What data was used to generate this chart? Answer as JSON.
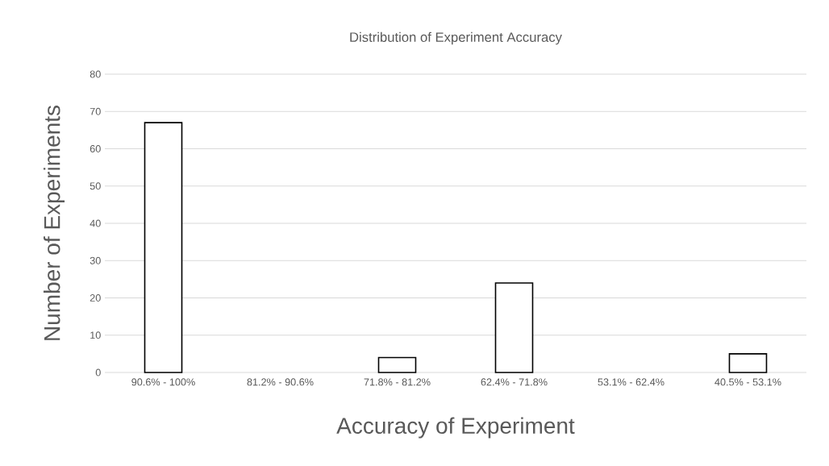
{
  "chart_data": {
    "type": "bar",
    "title": "Distribution of Experiment Accuracy",
    "xlabel": "Accuracy of Experiment",
    "ylabel": "Number of Experiments",
    "categories": [
      "90.6% - 100%",
      "81.2% - 90.6%",
      "71.8% - 81.2%",
      "62.4% - 71.8%",
      "53.1% - 62.4%",
      "40.5% - 53.1%"
    ],
    "values": [
      67,
      0,
      4,
      24,
      0,
      5
    ],
    "color": "#ffffff",
    "ylim": [
      0,
      80
    ],
    "yticks": [
      0,
      10,
      20,
      30,
      40,
      50,
      60,
      70,
      80
    ],
    "grid": "y"
  }
}
